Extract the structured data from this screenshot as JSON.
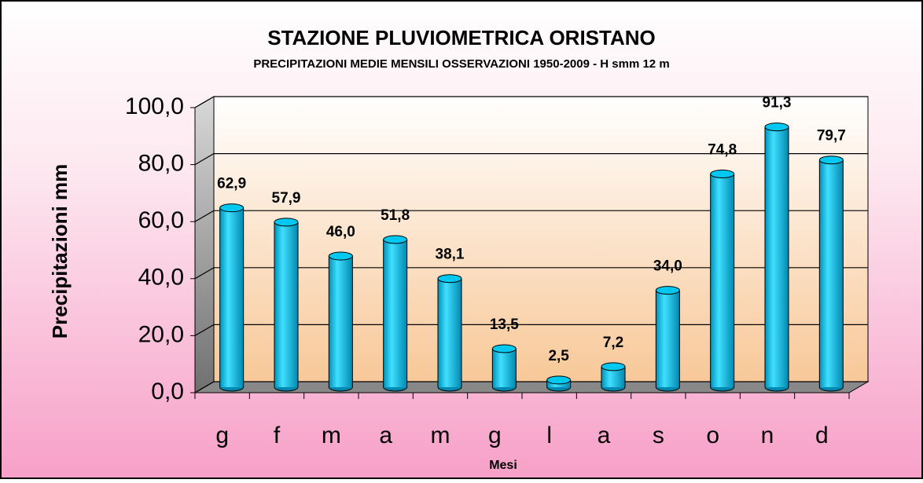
{
  "chart_data": {
    "type": "bar",
    "title": "STAZIONE PLUVIOMETRICA ORISTANO",
    "subtitle": "PRECIPITAZIONI MEDIE MENSILI OSSERVAZIONI 1950-2009 - H smm 12 m",
    "x_label": "Mesi",
    "y_label": "Precipitazioni  mm",
    "categories": [
      "g",
      "f",
      "m",
      "a",
      "m",
      "g",
      "l",
      "a",
      "s",
      "o",
      "n",
      "d"
    ],
    "values": [
      62.9,
      57.9,
      46.0,
      51.8,
      38.1,
      13.5,
      2.5,
      7.2,
      34.0,
      74.8,
      91.3,
      79.7
    ],
    "value_labels": [
      "62,9",
      "57,9",
      "46,0",
      "51,8",
      "38,1",
      "13,5",
      "2,5",
      "7,2",
      "34,0",
      "74,8",
      "91,3",
      "79,7"
    ],
    "color": "#00c8f0",
    "ylim": [
      0,
      100
    ],
    "yticks": [
      {
        "value": 0,
        "label": "0,0"
      },
      {
        "value": 20,
        "label": "20,0"
      },
      {
        "value": 40,
        "label": "40,0"
      },
      {
        "value": 60,
        "label": "60,0"
      },
      {
        "value": 80,
        "label": "80,0"
      },
      {
        "value": 100,
        "label": "100,0"
      }
    ],
    "grid": true
  }
}
